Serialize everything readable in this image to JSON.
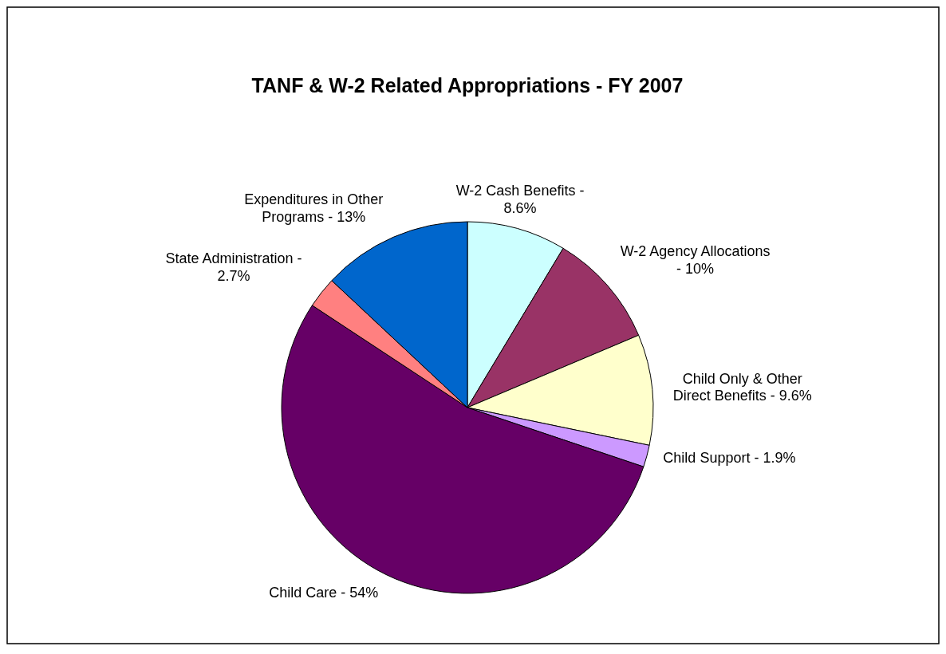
{
  "chart_data": {
    "type": "pie",
    "title": "TANF & W-2 Related Appropriations - FY 2007",
    "categories": [
      "W-2 Cash Benefits -",
      "W-2 Agency Allocations -",
      "Child Only & Other Direct Benefits -",
      "Child Support -",
      "Child Care -",
      "State Administration -",
      "Expenditures in Other Programs -"
    ],
    "values": [
      8.6,
      10,
      9.6,
      1.9,
      54,
      2.7,
      13
    ],
    "value_labels": [
      "8.6%",
      "10%",
      "9.6%",
      "1.9%",
      "54%",
      "2.7%",
      "13%"
    ],
    "colors": [
      "#ccffff",
      "#993366",
      "#ffffcc",
      "#cc99ff",
      "#660066",
      "#ff8080",
      "#0066cc"
    ]
  }
}
